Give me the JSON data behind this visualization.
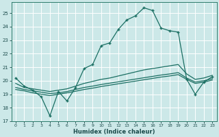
{
  "bg_color": "#cce8e8",
  "grid_color": "#b8d8d8",
  "line_color": "#1a6e62",
  "xlabel": "Humidex (Indice chaleur)",
  "xlim": [
    -0.5,
    23.5
  ],
  "ylim": [
    17,
    25.8
  ],
  "yticks": [
    17,
    18,
    19,
    20,
    21,
    22,
    23,
    24,
    25
  ],
  "xticks": [
    0,
    1,
    2,
    3,
    4,
    5,
    6,
    7,
    8,
    9,
    10,
    11,
    12,
    13,
    14,
    15,
    16,
    17,
    18,
    19,
    20,
    21,
    22,
    23
  ],
  "line1_x": [
    0,
    1,
    2,
    3,
    4,
    5,
    6,
    7,
    8,
    9,
    10,
    11,
    12,
    13,
    14,
    15,
    16,
    17,
    18,
    19,
    20,
    21,
    22,
    23
  ],
  "line1_y": [
    20.2,
    19.6,
    19.3,
    18.8,
    17.4,
    19.2,
    18.5,
    19.5,
    20.9,
    21.2,
    22.6,
    22.8,
    23.8,
    24.5,
    24.8,
    25.4,
    25.2,
    23.9,
    23.7,
    23.6,
    20.1,
    19.0,
    19.9,
    20.3
  ],
  "line2_x": [
    0,
    1,
    2,
    3,
    4,
    5,
    6,
    7,
    8,
    9,
    10,
    11,
    12,
    13,
    14,
    15,
    16,
    17,
    18,
    19,
    20,
    21,
    22,
    23
  ],
  "line2_y": [
    19.8,
    19.5,
    19.4,
    19.3,
    19.2,
    19.3,
    19.4,
    19.6,
    19.8,
    19.95,
    20.1,
    20.2,
    20.35,
    20.5,
    20.65,
    20.8,
    20.9,
    21.0,
    21.1,
    21.2,
    20.5,
    20.1,
    20.2,
    20.4
  ],
  "line3_x": [
    0,
    1,
    2,
    3,
    4,
    5,
    6,
    7,
    8,
    9,
    10,
    11,
    12,
    13,
    14,
    15,
    16,
    17,
    18,
    19,
    20,
    21,
    22,
    23
  ],
  "line3_y": [
    19.5,
    19.35,
    19.25,
    19.15,
    19.05,
    19.1,
    19.2,
    19.35,
    19.5,
    19.6,
    19.72,
    19.82,
    19.92,
    20.02,
    20.12,
    20.22,
    20.32,
    20.42,
    20.5,
    20.6,
    20.2,
    19.9,
    20.0,
    20.15
  ],
  "line4_x": [
    0,
    1,
    2,
    3,
    4,
    5,
    6,
    7,
    8,
    9,
    10,
    11,
    12,
    13,
    14,
    15,
    16,
    17,
    18,
    19,
    20,
    21,
    22,
    23
  ],
  "line4_y": [
    19.35,
    19.25,
    19.1,
    19.0,
    18.9,
    19.0,
    19.1,
    19.22,
    19.35,
    19.45,
    19.57,
    19.67,
    19.77,
    19.87,
    19.97,
    20.07,
    20.17,
    20.27,
    20.35,
    20.45,
    20.1,
    19.8,
    19.9,
    20.05
  ]
}
